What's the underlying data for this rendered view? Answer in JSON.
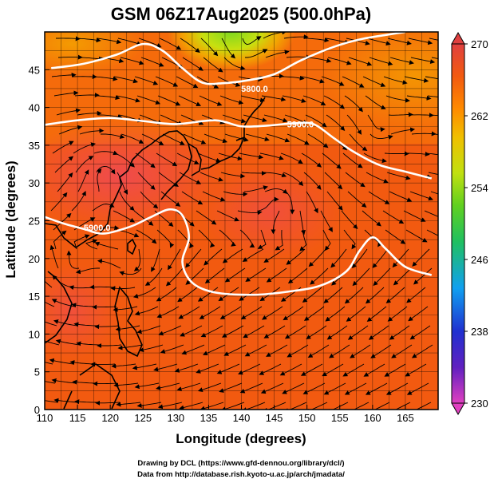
{
  "chart_data": {
    "type": "heatmap",
    "title": "GSM 06Z17Aug2025 (500.0hPa)",
    "xlabel": "Longitude (degrees)",
    "ylabel": "Latitude  (degrees)",
    "xlim": [
      110,
      170
    ],
    "ylim": [
      0,
      50
    ],
    "x_ticks": [
      "110",
      "115",
      "120",
      "125",
      "130",
      "135",
      "140",
      "145",
      "150",
      "155",
      "160",
      "165"
    ],
    "x_tick_values": [
      110,
      115,
      120,
      125,
      130,
      135,
      140,
      145,
      150,
      155,
      160,
      165
    ],
    "y_ticks": [
      "0",
      "5",
      "10",
      "15",
      "20",
      "25",
      "30",
      "35",
      "40",
      "45"
    ],
    "y_tick_values": [
      0,
      5,
      10,
      15,
      20,
      25,
      30,
      35,
      40,
      45
    ],
    "grid": true,
    "colorbar": {
      "min": 230,
      "max": 270,
      "tick_labels": [
        "230",
        "238",
        "246",
        "254",
        "262",
        "270"
      ],
      "tick_values": [
        230,
        238,
        246,
        254,
        262,
        270
      ],
      "colors": [
        "#e040c0",
        "#6020c0",
        "#2030d0",
        "#10a0f0",
        "#20c060",
        "#60d020",
        "#c0e010",
        "#f0c000",
        "#ff8a00",
        "#f25a10",
        "#e04040"
      ]
    },
    "field_samples": [
      {
        "lon": 112,
        "lat": 47,
        "value": 264
      },
      {
        "lon": 125,
        "lat": 47,
        "value": 262
      },
      {
        "lon": 136,
        "lat": 48,
        "value": 257
      },
      {
        "lon": 150,
        "lat": 47,
        "value": 263
      },
      {
        "lon": 165,
        "lat": 44,
        "value": 263
      },
      {
        "lon": 118,
        "lat": 32,
        "value": 270
      },
      {
        "lon": 145,
        "lat": 30,
        "value": 269
      },
      {
        "lon": 160,
        "lat": 30,
        "value": 266
      },
      {
        "lon": 118,
        "lat": 18,
        "value": 270
      },
      {
        "lon": 140,
        "lat": 10,
        "value": 268
      },
      {
        "lon": 160,
        "lat": 5,
        "value": 268
      }
    ],
    "contours": [
      {
        "label": "5800.0",
        "label_at": [
          142,
          42.5
        ],
        "points": [
          [
            111,
            45.2
          ],
          [
            116,
            45.8
          ],
          [
            121,
            47
          ],
          [
            125,
            48.4
          ],
          [
            128,
            47.5
          ],
          [
            131,
            45.2
          ],
          [
            134,
            43.3
          ],
          [
            137,
            43.2
          ],
          [
            141,
            43.6
          ],
          [
            145,
            44.4
          ],
          [
            149,
            46.2
          ],
          [
            154,
            48
          ],
          [
            158,
            49
          ],
          [
            162,
            49.6
          ],
          [
            165,
            50
          ]
        ]
      },
      {
        "label": "5900.0",
        "label_at": [
          149,
          37.8
        ],
        "points": [
          [
            110,
            37.7
          ],
          [
            115,
            38.3
          ],
          [
            120,
            38.6
          ],
          [
            125,
            38.2
          ],
          [
            130,
            37.8
          ],
          [
            136,
            38.3
          ],
          [
            140,
            37.5
          ],
          [
            144,
            37.6
          ],
          [
            148,
            37.9
          ],
          [
            151,
            37.8
          ],
          [
            154,
            36
          ],
          [
            157,
            34.2
          ],
          [
            161,
            32.4
          ],
          [
            165,
            31.5
          ],
          [
            169,
            30.6
          ]
        ]
      },
      {
        "label": "5900.0",
        "label_at": [
          118,
          24.1
        ],
        "points": [
          [
            110,
            25.5
          ],
          [
            113,
            24.6
          ],
          [
            116,
            23.9
          ],
          [
            119,
            23.3
          ],
          [
            123,
            24.2
          ],
          [
            126,
            25.4
          ],
          [
            129,
            26.5
          ],
          [
            131,
            25.7
          ],
          [
            132,
            22.8
          ],
          [
            131,
            19.5
          ],
          [
            132.5,
            16.8
          ],
          [
            136,
            15.5
          ],
          [
            142,
            15.2
          ],
          [
            147,
            15.6
          ],
          [
            152,
            16.4
          ],
          [
            156,
            18.3
          ],
          [
            158,
            21
          ],
          [
            160,
            22.8
          ],
          [
            162,
            21.3
          ],
          [
            165,
            18.9
          ],
          [
            169,
            17.8
          ]
        ]
      }
    ]
  },
  "credits": {
    "line1": "Drawing by DCL (https://www.gfd-dennou.org/library/dcl/)",
    "line2": "Data from http://database.rish.kyoto-u.ac.jp/arch/jmadata/"
  }
}
